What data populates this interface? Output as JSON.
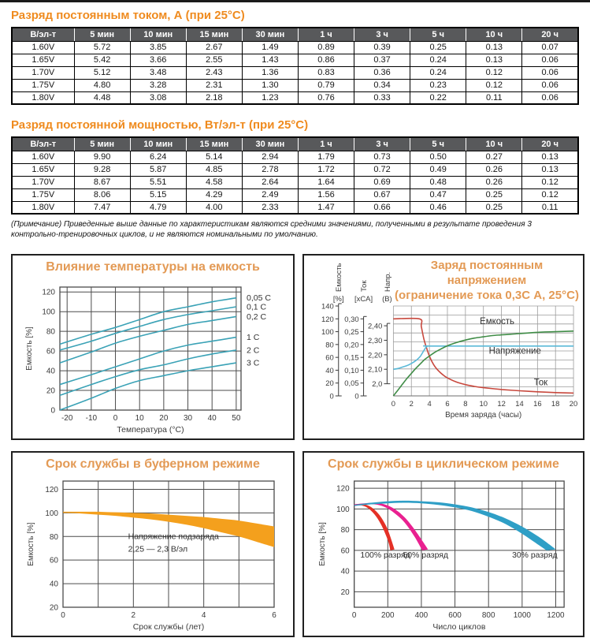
{
  "page": {
    "section1_title": "Разряд постоянным током, А (при 25°C)",
    "section2_title": "Разряд постоянной мощностью, Вт/эл-т (при 25°C)",
    "note": "(Примечание) Приведенные выше данные по характеристикам являются средними значениями, полученными в результате проведения 3 контрольно-тренировочных циклов, и не являются номинальными по умолчанию."
  },
  "colors": {
    "accent_orange": "#ef8b1f",
    "chart_title": "#e39a55",
    "header_bg": "#58595b",
    "teal": "#3aa2b6",
    "charge_red": "#c8483d",
    "charge_blue": "#5ab9d8",
    "charge_green": "#3f8c46",
    "float_orange": "#f4a01d",
    "cycle_red": "#e43026",
    "cycle_pink": "#e92190",
    "cycle_blue": "#2f9fc6"
  },
  "tables": {
    "headers": [
      "В/эл-т",
      "5 мин",
      "10 мин",
      "15 мин",
      "30 мин",
      "1 ч",
      "3 ч",
      "5 ч",
      "10 ч",
      "20 ч"
    ],
    "current": {
      "rows": [
        [
          "1.60V",
          "5.72",
          "3.85",
          "2.67",
          "1.49",
          "0.89",
          "0.39",
          "0.25",
          "0.13",
          "0.07"
        ],
        [
          "1.65V",
          "5.42",
          "3.66",
          "2.55",
          "1.43",
          "0.86",
          "0.37",
          "0.24",
          "0.13",
          "0.06"
        ],
        [
          "1.70V",
          "5.12",
          "3.48",
          "2.43",
          "1.36",
          "0.83",
          "0.36",
          "0.24",
          "0.12",
          "0.06"
        ],
        [
          "1.75V",
          "4.80",
          "3.28",
          "2.31",
          "1.30",
          "0.79",
          "0.34",
          "0.23",
          "0.12",
          "0.06"
        ],
        [
          "1.80V",
          "4.48",
          "3.08",
          "2.18",
          "1.23",
          "0.76",
          "0.33",
          "0.22",
          "0.11",
          "0.06"
        ]
      ]
    },
    "power": {
      "rows": [
        [
          "1.60V",
          "9.90",
          "6.24",
          "5.14",
          "2.94",
          "1.79",
          "0.73",
          "0.50",
          "0.27",
          "0.13"
        ],
        [
          "1.65V",
          "9.28",
          "5.87",
          "4.85",
          "2.78",
          "1.72",
          "0.72",
          "0.49",
          "0.26",
          "0.13"
        ],
        [
          "1.70V",
          "8.67",
          "5.51",
          "4.58",
          "2.64",
          "1.64",
          "0.69",
          "0.48",
          "0.26",
          "0.12"
        ],
        [
          "1.75V",
          "8.06",
          "5.15",
          "4.29",
          "2.49",
          "1.56",
          "0.67",
          "0.47",
          "0.25",
          "0.12"
        ],
        [
          "1.80V",
          "7.47",
          "4.79",
          "4.00",
          "2.33",
          "1.47",
          "0.66",
          "0.46",
          "0.25",
          "0.11"
        ]
      ]
    }
  },
  "chart_data": [
    {
      "id": "temp",
      "type": "line",
      "title": "Влияние температуры на емкость",
      "xlabel": "Температура (°C)",
      "ylabel": "Емкость [%]",
      "xlim": [
        -23,
        52
      ],
      "ylim": [
        0,
        125
      ],
      "xticks": [
        -20,
        -10,
        0,
        10,
        20,
        30,
        40,
        50
      ],
      "yticks": [
        0,
        20,
        40,
        60,
        80,
        100,
        120
      ],
      "x": [
        -23,
        -10,
        0,
        10,
        20,
        30,
        40,
        50
      ],
      "series": [
        {
          "name": "0,05 C",
          "y": [
            67,
            77,
            84,
            92,
            100,
            105,
            110,
            114
          ]
        },
        {
          "name": "0,1 C",
          "y": [
            61,
            70,
            78,
            85,
            92,
            97,
            101,
            105
          ]
        },
        {
          "name": "0,2 C",
          "y": [
            48,
            59,
            68,
            75,
            81,
            87,
            91,
            95
          ]
        },
        {
          "name": "1 C",
          "y": [
            26,
            36,
            44,
            52,
            60,
            66,
            70,
            74
          ]
        },
        {
          "name": "2 C",
          "y": [
            15,
            26,
            34,
            41,
            46,
            52,
            57,
            61
          ]
        },
        {
          "name": "3 C",
          "y": [
            0,
            12,
            22,
            30,
            35,
            40,
            44,
            48
          ]
        }
      ],
      "line_color": "#3aa2b6"
    },
    {
      "id": "charge",
      "type": "line",
      "title": "Заряд постоянным напряжением",
      "subtitle": "(ограничение тока 0,3С А, 25°C)",
      "xlabel": "Время заряда (часы)",
      "xlim": [
        0,
        20
      ],
      "xticks": [
        0,
        2,
        4,
        6,
        8,
        10,
        12,
        14,
        16,
        18,
        20
      ],
      "grid_rows": 10,
      "axes": [
        {
          "name": "Емкость",
          "unit": "[%]",
          "labels": [
            "0",
            "20",
            "40",
            "60",
            "80",
            "100",
            "120",
            "140"
          ],
          "values": [
            0,
            20,
            40,
            60,
            80,
            100,
            120,
            140
          ],
          "min": 0,
          "max": 140,
          "frac": [
            0,
            1
          ]
        },
        {
          "name": "Ток",
          "unit": "[xCA]",
          "labels": [
            "0",
            "0,05",
            "0,10",
            "0,15",
            "0,20",
            "0,25",
            "0,30"
          ],
          "values": [
            0,
            0.05,
            0.1,
            0.15,
            0.2,
            0.25,
            0.3
          ],
          "min": 0,
          "max": 0.3,
          "frac": [
            0,
            0.857
          ]
        },
        {
          "name": "Напр.",
          "unit": "(В)",
          "labels": [
            "2,0",
            "2,10",
            "2,20",
            "2,30",
            "2,40"
          ],
          "values": [
            2.0,
            2.1,
            2.2,
            2.3,
            2.4
          ],
          "min": 2.0,
          "max": 2.4,
          "frac": [
            0.135,
            0.78
          ]
        }
      ],
      "series": [
        {
          "name": "Ток",
          "axis": 1,
          "color": "#c8483d",
          "pts": [
            [
              0,
              0.3
            ],
            [
              2.9,
              0.3
            ],
            [
              3.1,
              0.27
            ],
            [
              3.4,
              0.22
            ],
            [
              3.7,
              0.185
            ],
            [
              4,
              0.155
            ],
            [
              4.5,
              0.12
            ],
            [
              5,
              0.098
            ],
            [
              5.5,
              0.082
            ],
            [
              6,
              0.07
            ],
            [
              7,
              0.054
            ],
            [
              8,
              0.044
            ],
            [
              9,
              0.037
            ],
            [
              10,
              0.032
            ],
            [
              12,
              0.025
            ],
            [
              14,
              0.02
            ],
            [
              16,
              0.016
            ],
            [
              18,
              0.013
            ],
            [
              20,
              0.011
            ]
          ]
        },
        {
          "name": "Напряжение",
          "axis": 2,
          "color": "#5ab9d8",
          "pts": [
            [
              0,
              2.1
            ],
            [
              0.5,
              2.105
            ],
            [
              1,
              2.115
            ],
            [
              1.5,
              2.125
            ],
            [
              2,
              2.14
            ],
            [
              2.5,
              2.16
            ],
            [
              3,
              2.19
            ],
            [
              3.3,
              2.22
            ],
            [
              3.6,
              2.25
            ],
            [
              3.8,
              2.26
            ],
            [
              4,
              2.26
            ],
            [
              12,
              2.26
            ],
            [
              20,
              2.26
            ]
          ]
        },
        {
          "name": "Емкость",
          "axis": 0,
          "color": "#3f8c46",
          "pts": [
            [
              0,
              0
            ],
            [
              0.5,
              9
            ],
            [
              1,
              18
            ],
            [
              1.5,
              27
            ],
            [
              2,
              35
            ],
            [
              2.5,
              43
            ],
            [
              3,
              50
            ],
            [
              3.5,
              57
            ],
            [
              4,
              62
            ],
            [
              4.5,
              67
            ],
            [
              5,
              71
            ],
            [
              6,
              78
            ],
            [
              7,
              83
            ],
            [
              8,
              87
            ],
            [
              9,
              90
            ],
            [
              10,
              92
            ],
            [
              11,
              94
            ],
            [
              12,
              95
            ],
            [
              13,
              96
            ],
            [
              14,
              97
            ],
            [
              16,
              99
            ],
            [
              18,
              100
            ],
            [
              20,
              101
            ]
          ]
        }
      ],
      "labels": [
        {
          "text": "Емкость",
          "x": 9.6,
          "fy": 0.8
        },
        {
          "text": "Напряжение",
          "x": 10.6,
          "fy": 0.47
        },
        {
          "text": "Ток",
          "x": 15.6,
          "fy": 0.12
        }
      ]
    },
    {
      "id": "float",
      "type": "band",
      "title": "Срок службы в буферном режиме",
      "xlabel": "Срок службы (лет)",
      "ylabel": "Емкость [%]",
      "xlim": [
        0,
        6
      ],
      "ylim": [
        20,
        127
      ],
      "xticks": [
        0,
        2,
        4,
        6
      ],
      "xgrid": [
        0,
        1,
        2,
        3,
        4,
        5,
        6
      ],
      "yticks": [
        20,
        40,
        60,
        80,
        100,
        120
      ],
      "bands": [
        {
          "name": "Напряжение подзаряда 2,25 — 2,3 В/эл",
          "color": "#f4a01d",
          "xu": [
            0,
            0.5,
            1,
            1.5,
            2,
            2.5,
            3,
            3.5,
            4,
            4.5,
            5,
            5.5,
            6
          ],
          "up": [
            101,
            101,
            101,
            100.5,
            100,
            99.5,
            98.5,
            97.5,
            96.5,
            95,
            93.5,
            91,
            88.5
          ],
          "xl": [
            0,
            0.5,
            1,
            1.5,
            2,
            2.5,
            3,
            3.5,
            4,
            4.5,
            5,
            5.5,
            6
          ],
          "lo": [
            100,
            99.5,
            98.5,
            97.5,
            96,
            94.5,
            92.5,
            90,
            87,
            83.5,
            80,
            75.5,
            71
          ]
        }
      ],
      "annotation": [
        "Напряжение подзаряда",
        "2,25 — 2,3 В/эл"
      ],
      "annotation_xy": [
        1.85,
        78,
        67
      ]
    },
    {
      "id": "cycle",
      "type": "band",
      "title": "Срок службы в циклическом режиме",
      "xlabel": "Число циклов",
      "ylabel": "Емкость [%]",
      "xlim": [
        0,
        1250
      ],
      "ylim": [
        5,
        127
      ],
      "xticks": [
        0,
        200,
        400,
        600,
        800,
        1000,
        1200
      ],
      "xgrid": [
        0,
        200,
        400,
        600,
        800,
        1000,
        1200
      ],
      "yticks": [
        20,
        40,
        60,
        80,
        100,
        120
      ],
      "bands": [
        {
          "name": "100% разряд",
          "color": "#e43026",
          "xu": [
            0,
            40,
            80,
            120,
            160,
            200,
            240
          ],
          "up": [
            104.5,
            105,
            103.5,
            99.5,
            92,
            80,
            61
          ],
          "xl": [
            0,
            40,
            80,
            120,
            160,
            200,
            215
          ],
          "lo": [
            103,
            103.5,
            101,
            95,
            85,
            70,
            60
          ]
        },
        {
          "name": "50% разряд",
          "color": "#e92190",
          "xu": [
            0,
            60,
            120,
            180,
            240,
            300,
            360,
            440
          ],
          "up": [
            104.5,
            105.5,
            106,
            104.5,
            100,
            92,
            80,
            61
          ],
          "xl": [
            0,
            60,
            120,
            180,
            240,
            300,
            360,
            405
          ],
          "lo": [
            103,
            104,
            104.5,
            102,
            96,
            87,
            73,
            60
          ]
        },
        {
          "name": "30% разряд",
          "color": "#2f9fc6",
          "xu": [
            0,
            100,
            200,
            300,
            400,
            500,
            600,
            700,
            800,
            900,
            1000,
            1100,
            1200
          ],
          "up": [
            104,
            106,
            107.5,
            108,
            107.5,
            106.5,
            104.5,
            101.5,
            97,
            91,
            83,
            73,
            61
          ],
          "xl": [
            0,
            100,
            200,
            300,
            400,
            500,
            600,
            700,
            800,
            900,
            1000,
            1100,
            1145
          ],
          "lo": [
            103,
            104.5,
            105.5,
            106,
            105.5,
            104,
            101.5,
            98,
            92.5,
            85.5,
            76,
            65,
            60
          ]
        }
      ],
      "labels": [
        {
          "text": "100% разряд",
          "x": 185,
          "y": 53
        },
        {
          "text": "50% разряд",
          "x": 425,
          "y": 53
        },
        {
          "text": "30% разряд",
          "x": 1075,
          "y": 53
        }
      ]
    }
  ]
}
